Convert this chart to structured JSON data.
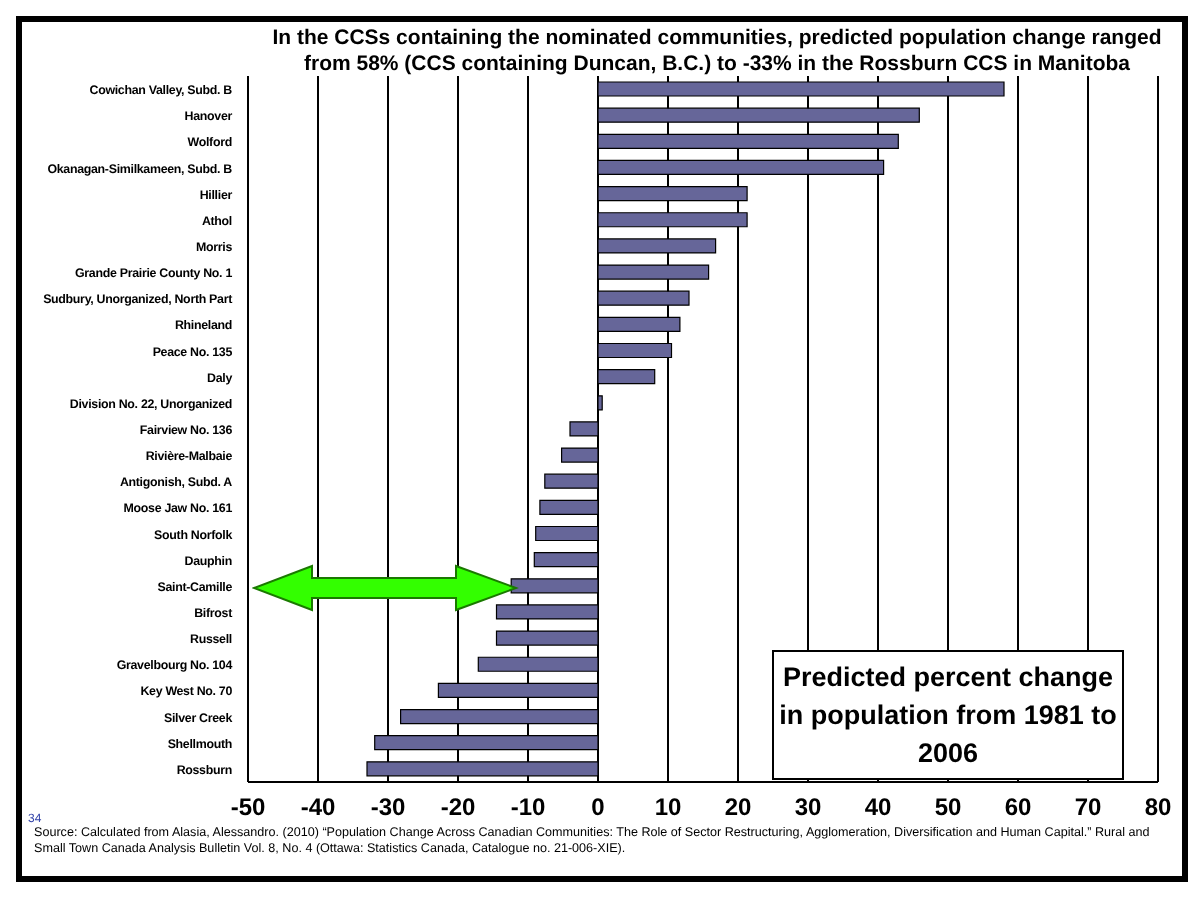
{
  "chart_data": {
    "type": "bar",
    "orientation": "horizontal",
    "title": "In the CCSs containing the nominated communities, predicted population change ranged from 58% (CCS containing Duncan, B.C.) to -33% in the Rossburn CCS in Manitoba",
    "categories": [
      "Cowichan Valley, Subd. B",
      "Hanover",
      "Wolford",
      "Okanagan-Similkameen, Subd. B",
      "Hillier",
      "Athol",
      "Morris",
      "Grande Prairie County No. 1",
      "Sudbury, Unorganized, North Part",
      "Rhineland",
      "Peace No. 135",
      "Daly",
      "Division No. 22, Unorganized",
      "Fairview No. 136",
      "Rivière-Malbaie",
      "Antigonish, Subd. A",
      "Moose Jaw No. 161",
      "South Norfolk",
      "Dauphin",
      "Saint-Camille",
      "Bifrost",
      "Russell",
      "Gravelbourg No. 104",
      "Key West No. 70",
      "Silver Creek",
      "Shellmouth",
      "Rossburn"
    ],
    "values": [
      58,
      45.9,
      42.9,
      40.8,
      21.3,
      21.3,
      16.8,
      15.8,
      13,
      11.7,
      10.5,
      8.1,
      0.6,
      -4,
      -5.2,
      -7.6,
      -8.3,
      -8.9,
      -9.1,
      -12.4,
      -14.5,
      -14.5,
      -17.1,
      -22.8,
      -28.2,
      -31.9,
      -33
    ],
    "color": "#666699",
    "xlim": [
      -50,
      80
    ],
    "xticks": [
      -50,
      -40,
      -30,
      -20,
      -10,
      0,
      10,
      20,
      30,
      40,
      50,
      60,
      70,
      80
    ],
    "grid": "x",
    "annotations": [
      "Predicted percent change in population from 1981 to 2006",
      "Source: Calculated from Alasia, Alessandro. (2010) “Population Change Across Canadian Communities: The Role of Sector Restructuring, Agglomeration, Diversification and Human Capital.” Rural and Small Town Canada Analysis Bulletin Vol. 8, No. 4 (Ottawa: Statistics Canada, Catalogue no. 21-006-XIE).",
      "34"
    ]
  }
}
